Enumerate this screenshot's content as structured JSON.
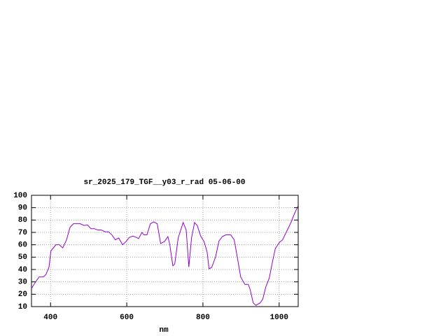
{
  "chart_data": {
    "type": "line",
    "title": "sr_2025_179_TGF__y03_r_rad 05-06-00",
    "xlabel": "nm",
    "x": [
      350,
      363,
      370,
      381,
      388,
      396,
      401,
      414,
      423,
      432,
      442,
      451,
      460,
      478,
      488,
      497,
      506,
      515,
      524,
      533,
      543,
      552,
      561,
      570,
      579,
      589,
      598,
      607,
      616,
      625,
      631,
      640,
      645,
      653,
      662,
      671,
      680,
      689,
      699,
      708,
      713,
      721,
      726,
      735,
      748,
      756,
      763,
      770,
      778,
      785,
      794,
      803,
      811,
      816,
      823,
      833,
      842,
      851,
      860,
      873,
      882,
      891,
      899,
      910,
      919,
      924,
      932,
      939,
      950,
      957,
      965,
      974,
      983,
      990,
      1001,
      1009,
      1020,
      1031,
      1040,
      1049
    ],
    "values": [
      24.7,
      31,
      34,
      34,
      36,
      42,
      55,
      60,
      60,
      57.5,
      64,
      74,
      77,
      77,
      75.6,
      76,
      73,
      73,
      72,
      72,
      70.5,
      70.5,
      68,
      64,
      65.5,
      60,
      62.6,
      66,
      67,
      66,
      65,
      70,
      68,
      68,
      77,
      78.5,
      77,
      61,
      62.6,
      66.6,
      60,
      43,
      44.5,
      65.5,
      78,
      72,
      42,
      65.5,
      78,
      75.6,
      67,
      62.6,
      54,
      40.5,
      41.7,
      50,
      63,
      66.6,
      68,
      68,
      64,
      48.5,
      34,
      28,
      28,
      23.6,
      13,
      11,
      13,
      16,
      26,
      33,
      47,
      57,
      62,
      64,
      71,
      78,
      85,
      91
    ],
    "color": "#9400d3",
    "xlim": [
      350,
      1050
    ],
    "xticks": [
      400,
      600,
      800,
      1000
    ],
    "ylim": [
      10,
      100
    ],
    "yticks": [
      10,
      20,
      30,
      40,
      50,
      60,
      70,
      80,
      90,
      100
    ],
    "grid": true
  }
}
